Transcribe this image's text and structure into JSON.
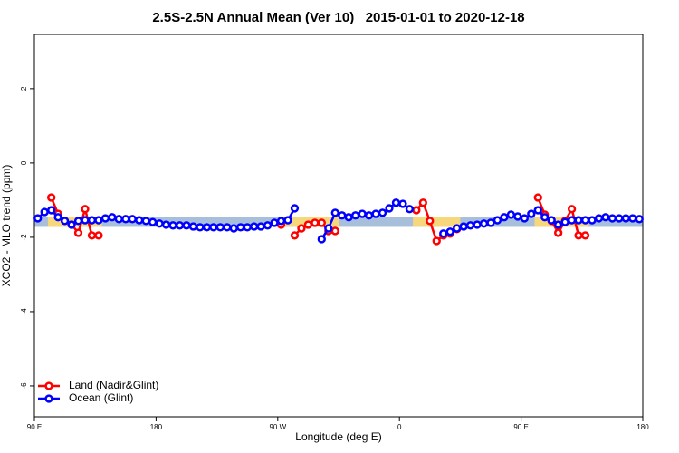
{
  "chart_data": {
    "type": "line",
    "title": "2.5S-2.5N Annual Mean (Ver 10)   2015-01-01 to 2020-12-18",
    "x_label": "Longitude (deg E)",
    "y_label": "XCO2 - MLO trend (ppm)",
    "xlim": [
      90,
      540
    ],
    "ylim": [
      -6.83,
      3.46
    ],
    "xticks": [
      {
        "value": 90,
        "label": "90 E"
      },
      {
        "value": 180,
        "label": "180"
      },
      {
        "value": 270,
        "label": "90 W"
      },
      {
        "value": 360,
        "label": "0"
      },
      {
        "value": 450,
        "label": "90 E"
      },
      {
        "value": 540,
        "label": "180"
      }
    ],
    "yticks": [
      2,
      0,
      -2,
      -4,
      -6
    ],
    "legend": "bottom-left",
    "shading": {
      "band": [
        -1.72,
        -1.45
      ],
      "ocean_color": "#a8bfdc",
      "land_color": "#f7d77c",
      "land_ranges": [
        [
          100,
          140
        ],
        [
          270,
          315
        ],
        [
          370,
          405
        ],
        [
          460,
          500
        ]
      ]
    },
    "series": [
      {
        "name": "Land (Nadir&Glint)",
        "color": "#ff0000",
        "x": [
          102.5,
          107.5,
          112.5,
          117.5,
          122.5,
          127.5,
          132.5,
          137.5,
          null,
          272.5,
          null,
          282.5,
          287.5,
          292.5,
          297.5,
          302.5,
          307.5,
          312.5,
          null,
          372.5,
          377.5,
          382.5,
          387.5,
          392.5,
          397.5,
          402.5,
          null,
          462.5,
          467.5,
          472.5,
          477.5,
          482.5,
          487.5,
          492.5,
          497.5
        ],
        "values": [
          -0.93,
          -1.37,
          -1.56,
          -1.66,
          -1.88,
          -1.24,
          -1.95,
          -1.95,
          null,
          -1.66,
          null,
          -1.95,
          -1.76,
          -1.66,
          -1.61,
          -1.61,
          -1.83,
          -1.83,
          null,
          -1.27,
          -1.07,
          -1.56,
          -2.1,
          -1.95,
          -1.9,
          -1.78,
          null,
          -0.93,
          -1.39,
          -1.56,
          -1.88,
          -1.56,
          -1.24,
          -1.95,
          -1.95
        ]
      },
      {
        "name": "Ocean (Glint)",
        "color": "#0000ff",
        "x": [
          92.5,
          97.5,
          102.5,
          107.5,
          112.5,
          117.5,
          122.5,
          127.5,
          132.5,
          137.5,
          142.5,
          147.5,
          152.5,
          157.5,
          162.5,
          167.5,
          172.5,
          177.5,
          182.5,
          187.5,
          192.5,
          197.5,
          202.5,
          207.5,
          212.5,
          217.5,
          222.5,
          227.5,
          232.5,
          237.5,
          242.5,
          247.5,
          252.5,
          257.5,
          262.5,
          267.5,
          272.5,
          277.5,
          282.5,
          null,
          302.5,
          307.5,
          312.5,
          317.5,
          322.5,
          327.5,
          332.5,
          337.5,
          342.5,
          347.5,
          352.5,
          357.5,
          362.5,
          367.5,
          null,
          392.5,
          397.5,
          402.5,
          407.5,
          412.5,
          417.5,
          422.5,
          427.5,
          432.5,
          437.5,
          442.5,
          447.5,
          452.5,
          457.5,
          462.5,
          467.5,
          472.5,
          477.5,
          482.5,
          487.5,
          492.5,
          497.5,
          502.5,
          507.5,
          512.5,
          517.5,
          522.5,
          527.5,
          532.5,
          537.5
        ],
        "values": [
          -1.49,
          -1.32,
          -1.27,
          -1.46,
          -1.56,
          -1.66,
          -1.56,
          -1.54,
          -1.54,
          -1.54,
          -1.49,
          -1.46,
          -1.51,
          -1.51,
          -1.51,
          -1.54,
          -1.56,
          -1.59,
          -1.63,
          -1.66,
          -1.68,
          -1.68,
          -1.68,
          -1.71,
          -1.73,
          -1.73,
          -1.73,
          -1.73,
          -1.73,
          -1.76,
          -1.73,
          -1.73,
          -1.71,
          -1.71,
          -1.68,
          -1.61,
          -1.56,
          -1.54,
          -1.22,
          null,
          -2.05,
          -1.76,
          -1.34,
          -1.41,
          -1.46,
          -1.41,
          -1.37,
          -1.41,
          -1.37,
          -1.34,
          -1.22,
          -1.07,
          -1.1,
          -1.24,
          null,
          -1.9,
          -1.85,
          -1.76,
          -1.71,
          -1.68,
          -1.66,
          -1.63,
          -1.61,
          -1.54,
          -1.46,
          -1.39,
          -1.44,
          -1.49,
          -1.37,
          -1.27,
          -1.46,
          -1.54,
          -1.66,
          -1.59,
          -1.54,
          -1.54,
          -1.54,
          -1.54,
          -1.49,
          -1.46,
          -1.49,
          -1.49,
          -1.49,
          -1.49,
          -1.51
        ]
      }
    ]
  }
}
